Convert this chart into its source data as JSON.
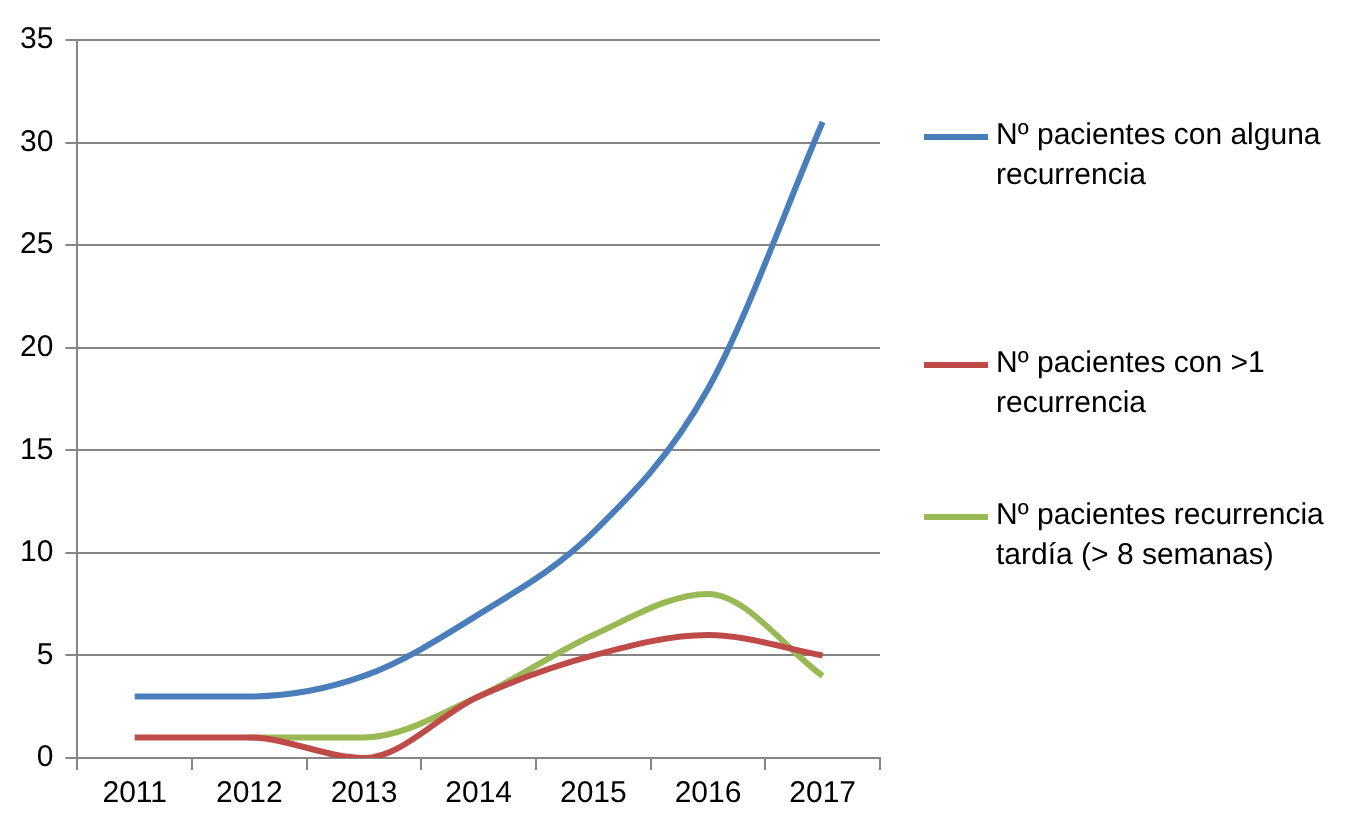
{
  "chart_data": {
    "type": "line",
    "categories": [
      "2011",
      "2012",
      "2013",
      "2014",
      "2015",
      "2016",
      "2017"
    ],
    "series": [
      {
        "name": "Nº pacientes con alguna recurrencia",
        "color": "#4a7ebb",
        "values": [
          3,
          3,
          4,
          7,
          11,
          18,
          31
        ]
      },
      {
        "name": "Nº pacientes con >1 recurrencia",
        "color": "#be4b48",
        "values": [
          1,
          1,
          0,
          3,
          5,
          6,
          5
        ]
      },
      {
        "name": "Nº pacientes recurrencia tardía (> 8 semanas)",
        "color": "#98b954",
        "values": [
          null,
          1,
          1,
          3,
          6,
          8,
          4
        ]
      }
    ],
    "ylim": [
      0,
      35
    ],
    "yticks": [
      0,
      5,
      10,
      15,
      20,
      25,
      30,
      35
    ],
    "grid": "y",
    "legend": "right",
    "marker": "none",
    "line_style": "solid"
  }
}
